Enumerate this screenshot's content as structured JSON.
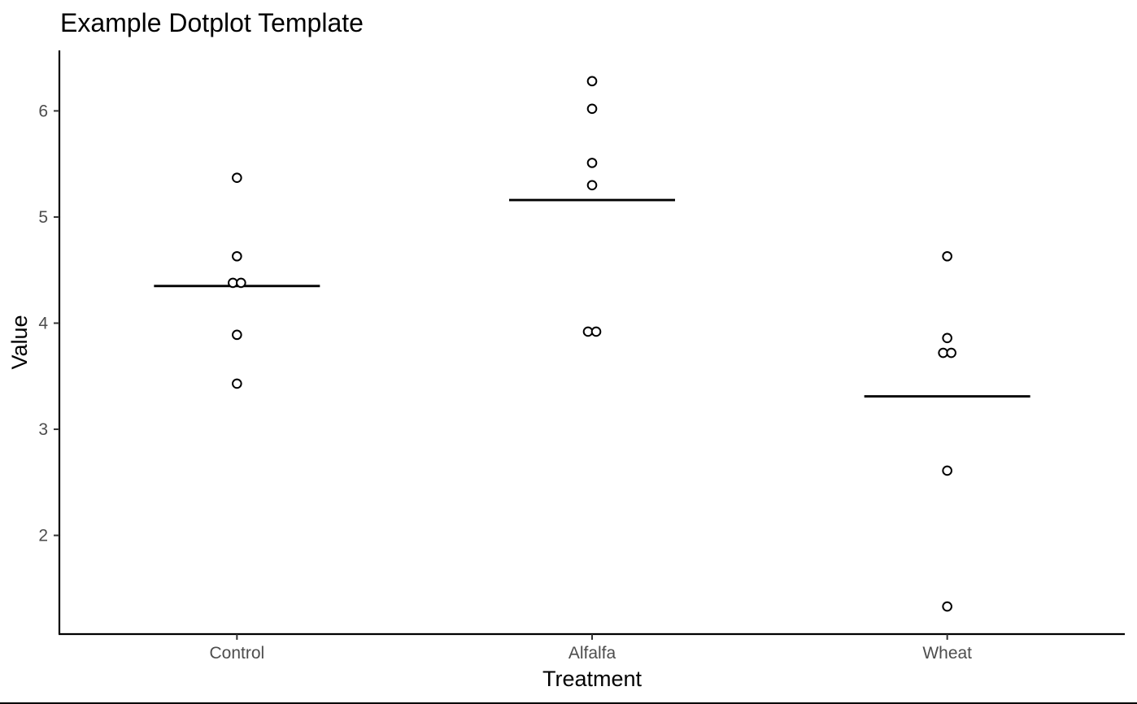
{
  "chart_data": {
    "type": "scatter",
    "title": "Example Dotplot Template",
    "xlabel": "Treatment",
    "ylabel": "Value",
    "categories": [
      "Control",
      "Alfalfa",
      "Wheat"
    ],
    "ylim": [
      1.07,
      6.57
    ],
    "yticks": [
      2,
      3,
      4,
      5,
      6
    ],
    "grid": false,
    "legend": "none",
    "points": [
      {
        "category": "Control",
        "values": [
          5.37,
          4.63,
          4.38,
          4.38,
          3.89,
          3.43
        ]
      },
      {
        "category": "Alfalfa",
        "values": [
          6.28,
          6.02,
          5.51,
          5.3,
          3.92,
          3.92
        ]
      },
      {
        "category": "Wheat",
        "values": [
          4.63,
          3.86,
          3.72,
          3.72,
          2.61,
          1.33
        ]
      }
    ],
    "means": [
      {
        "category": "Control",
        "value": 4.35
      },
      {
        "category": "Alfalfa",
        "value": 5.16
      },
      {
        "category": "Wheat",
        "value": 3.31
      }
    ],
    "colors": {
      "axis": "#000000",
      "tick_label": "#4d4d4d",
      "point_fill": "#ffffff",
      "point_stroke": "#000000",
      "mean_line": "#000000"
    }
  }
}
